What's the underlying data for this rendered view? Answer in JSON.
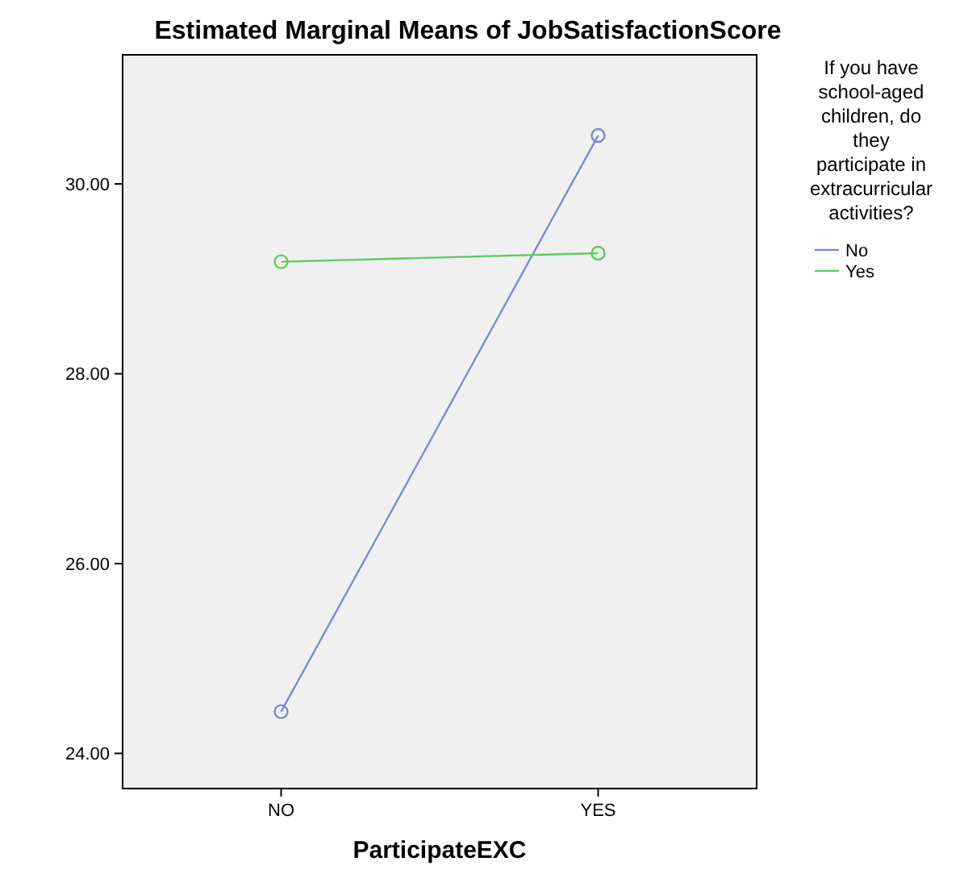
{
  "chart_data": {
    "type": "line",
    "title": "Estimated Marginal Means of JobSatisfactionScore",
    "xlabel": "ParticipateEXC",
    "legend_title": "If you have school-aged children, do they participate in extracurricular activities?",
    "categories": [
      "NO",
      "YES"
    ],
    "series": [
      {
        "name": "No",
        "color": "#7b8bd0",
        "values": [
          24.44,
          30.51
        ]
      },
      {
        "name": "Yes",
        "color": "#5dcc5d",
        "values": [
          29.18,
          29.27
        ]
      }
    ],
    "ylim": [
      23.63,
      31.36
    ],
    "yticks": [
      {
        "value": 24,
        "label": "24.00"
      },
      {
        "value": 26,
        "label": "26.00"
      },
      {
        "value": 28,
        "label": "28.00"
      },
      {
        "value": 30,
        "label": "30.00"
      }
    ],
    "grid": false,
    "legend": "right",
    "marker": "circle",
    "line_style": "solid"
  }
}
